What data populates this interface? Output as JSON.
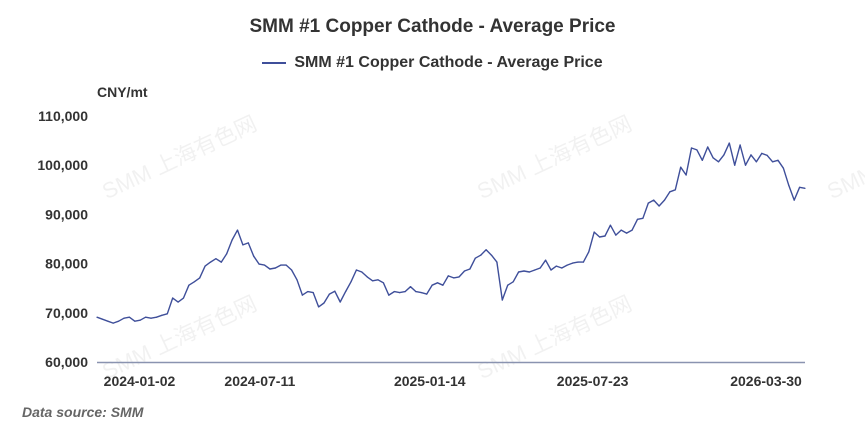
{
  "chart_data": {
    "type": "line",
    "title": "SMM #1 Copper Cathode - Average Price",
    "ylabel": "CNY/mt",
    "xlabel": "",
    "ylim": [
      60000,
      110000
    ],
    "yticks": [
      "60,000",
      "70,000",
      "80,000",
      "90,000",
      "100,000",
      "110,000"
    ],
    "ytick_values": [
      60000,
      70000,
      80000,
      90000,
      100000,
      110000
    ],
    "xticks": [
      "2024-01-02",
      "2024-07-11",
      "2025-01-14",
      "2025-07-23",
      "2026-03-30"
    ],
    "xtick_index_fraction": [
      0.06,
      0.23,
      0.47,
      0.7,
      0.945
    ],
    "legend_position": "top-center",
    "grid": false,
    "series": [
      {
        "name": "SMM #1 Copper Cathode - Average Price",
        "color": "#3f4f9a",
        "values": [
          69100,
          68700,
          68300,
          67900,
          68300,
          68900,
          69100,
          68300,
          68500,
          69100,
          68900,
          69100,
          69500,
          69800,
          73000,
          72200,
          73000,
          75600,
          76300,
          77100,
          79500,
          80300,
          81000,
          80300,
          82000,
          84800,
          86800,
          83800,
          84200,
          81500,
          79900,
          79700,
          78900,
          79100,
          79700,
          79700,
          78700,
          76700,
          73600,
          74300,
          74100,
          71200,
          72000,
          73800,
          74400,
          72200,
          74300,
          76300,
          78700,
          78300,
          77300,
          76500,
          76700,
          76100,
          73600,
          74300,
          74100,
          74300,
          75300,
          74300,
          74100,
          73800,
          75600,
          76100,
          75600,
          77500,
          77100,
          77300,
          78500,
          78900,
          81100,
          81700,
          82800,
          81700,
          80300,
          72600,
          75600,
          76300,
          78300,
          78500,
          78300,
          78700,
          79100,
          80700,
          78700,
          79500,
          79100,
          79700,
          80100,
          80300,
          80300,
          82400,
          86400,
          85400,
          85600,
          87800,
          85800,
          86800,
          86200,
          86800,
          89000,
          89200,
          92300,
          92900,
          91700,
          92900,
          94600,
          95000,
          99600,
          98000,
          103500,
          103100,
          101000,
          103700,
          101500,
          100700,
          102100,
          104500,
          100000,
          104100,
          100000,
          102100,
          100700,
          102400,
          102000,
          100700,
          101000,
          99400,
          95900,
          92900,
          95500,
          95300
        ]
      }
    ]
  },
  "footer": {
    "source": "Data source:  SMM"
  },
  "watermark": "SMM 上海有色网"
}
